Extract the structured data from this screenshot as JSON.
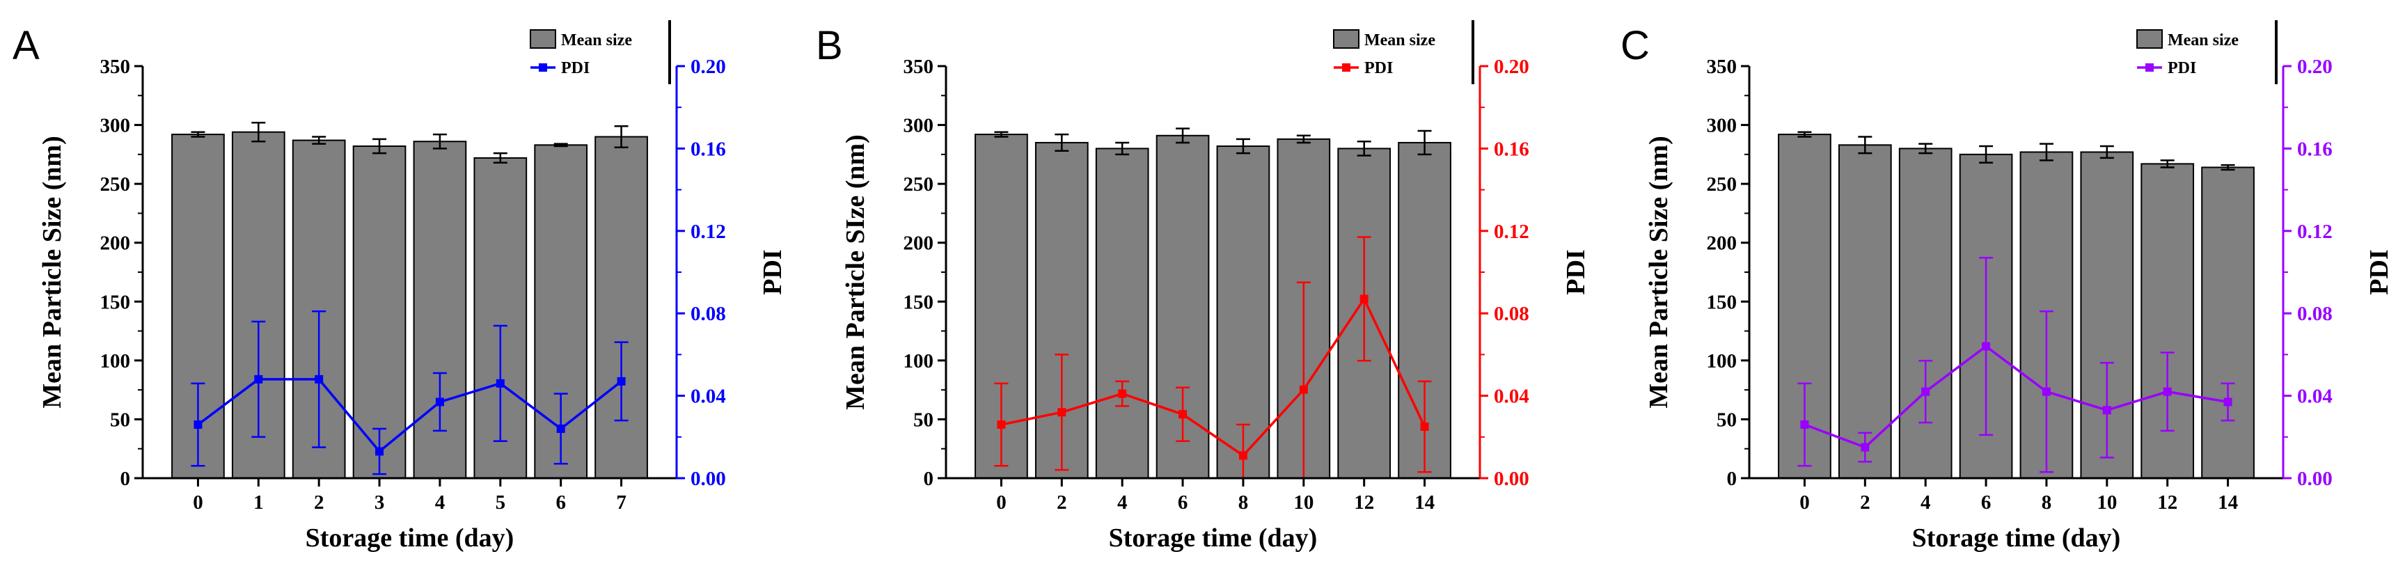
{
  "figure": {
    "panels": [
      {
        "letter": "A",
        "accent": "#0000ff",
        "legend": {
          "bar_label": "Mean size",
          "line_label": "PDI"
        },
        "xlabel": "Storage time (day)",
        "ylabel_left": "Mean Particle Size (nm)",
        "ylabel_right": "PDI",
        "y_ticks": [
          "0",
          "50",
          "100",
          "150",
          "200",
          "250",
          "300",
          "350"
        ],
        "y2_ticks": [
          "0.00",
          "0.04",
          "0.08",
          "0.12",
          "0.16",
          "0.20"
        ]
      },
      {
        "letter": "B",
        "accent": "#ff0000",
        "legend": {
          "bar_label": "Mean size",
          "line_label": "PDI"
        },
        "xlabel": "Storage time (day)",
        "ylabel_left": "Mean Particle SIze (nm)",
        "ylabel_right": "PDI",
        "y_ticks": [
          "0",
          "50",
          "100",
          "150",
          "200",
          "250",
          "300",
          "350"
        ],
        "y2_ticks": [
          "0.00",
          "0.04",
          "0.08",
          "0.12",
          "0.16",
          "0.20"
        ]
      },
      {
        "letter": "C",
        "accent": "#9900ff",
        "legend": {
          "bar_label": "Mean size",
          "line_label": "PDI"
        },
        "xlabel": "Storage time (day)",
        "ylabel_left": "Mean Particle Size (nm)",
        "ylabel_right": "PDI",
        "y_ticks": [
          "0",
          "50",
          "100",
          "150",
          "200",
          "250",
          "300",
          "350"
        ],
        "y2_ticks": [
          "0.00",
          "0.04",
          "0.08",
          "0.12",
          "0.16",
          "0.20"
        ]
      }
    ]
  },
  "chart_data": [
    {
      "type": "bar",
      "title": "A",
      "categories": [
        "0",
        "1",
        "2",
        "3",
        "4",
        "5",
        "6",
        "7"
      ],
      "xlabel": "Storage time (day)",
      "ylabel": "Mean Particle Size (nm)",
      "ylim": [
        0,
        350
      ],
      "y2label": "PDI",
      "y2lim": [
        0,
        0.2
      ],
      "series": [
        {
          "name": "Mean size",
          "axis": "left",
          "kind": "bar",
          "color": "#808080",
          "values": [
            292,
            294,
            287,
            282,
            286,
            272,
            283,
            290
          ],
          "errors": [
            2,
            8,
            3,
            6,
            6,
            4,
            1,
            9
          ]
        },
        {
          "name": "PDI",
          "axis": "right",
          "kind": "line",
          "color": "#0000ff",
          "values": [
            0.026,
            0.048,
            0.048,
            0.013,
            0.037,
            0.046,
            0.024,
            0.047
          ],
          "errors": [
            0.02,
            0.028,
            0.033,
            0.011,
            0.014,
            0.028,
            0.017,
            0.019
          ]
        }
      ]
    },
    {
      "type": "bar",
      "title": "B",
      "categories": [
        "0",
        "2",
        "4",
        "6",
        "8",
        "10",
        "12",
        "14"
      ],
      "xlabel": "Storage time (day)",
      "ylabel": "Mean Particle SIze (nm)",
      "ylim": [
        0,
        350
      ],
      "y2label": "PDI",
      "y2lim": [
        0,
        0.2
      ],
      "series": [
        {
          "name": "Mean size",
          "axis": "left",
          "kind": "bar",
          "color": "#808080",
          "values": [
            292,
            285,
            280,
            291,
            282,
            288,
            280,
            285
          ],
          "errors": [
            2,
            7,
            5,
            6,
            6,
            3,
            6,
            10
          ]
        },
        {
          "name": "PDI",
          "axis": "right",
          "kind": "line",
          "color": "#ff0000",
          "values": [
            0.026,
            0.032,
            0.041,
            0.031,
            0.011,
            0.043,
            0.087,
            0.025
          ],
          "errors": [
            0.02,
            0.028,
            0.006,
            0.013,
            0.015,
            0.052,
            0.03,
            0.022
          ]
        }
      ]
    },
    {
      "type": "bar",
      "title": "C",
      "categories": [
        "0",
        "2",
        "4",
        "6",
        "8",
        "10",
        "12",
        "14"
      ],
      "xlabel": "Storage time (day)",
      "ylabel": "Mean Particle Size (nm)",
      "ylim": [
        0,
        350
      ],
      "y2label": "PDI",
      "y2lim": [
        0,
        0.2
      ],
      "series": [
        {
          "name": "Mean size",
          "axis": "left",
          "kind": "bar",
          "color": "#808080",
          "values": [
            292,
            283,
            280,
            275,
            277,
            277,
            267,
            264
          ],
          "errors": [
            2,
            7,
            4,
            7,
            7,
            5,
            3,
            2
          ]
        },
        {
          "name": "PDI",
          "axis": "right",
          "kind": "line",
          "color": "#9900ff",
          "values": [
            0.026,
            0.015,
            0.042,
            0.064,
            0.042,
            0.033,
            0.042,
            0.037
          ],
          "errors": [
            0.02,
            0.007,
            0.015,
            0.043,
            0.039,
            0.023,
            0.019,
            0.009
          ]
        }
      ]
    }
  ]
}
